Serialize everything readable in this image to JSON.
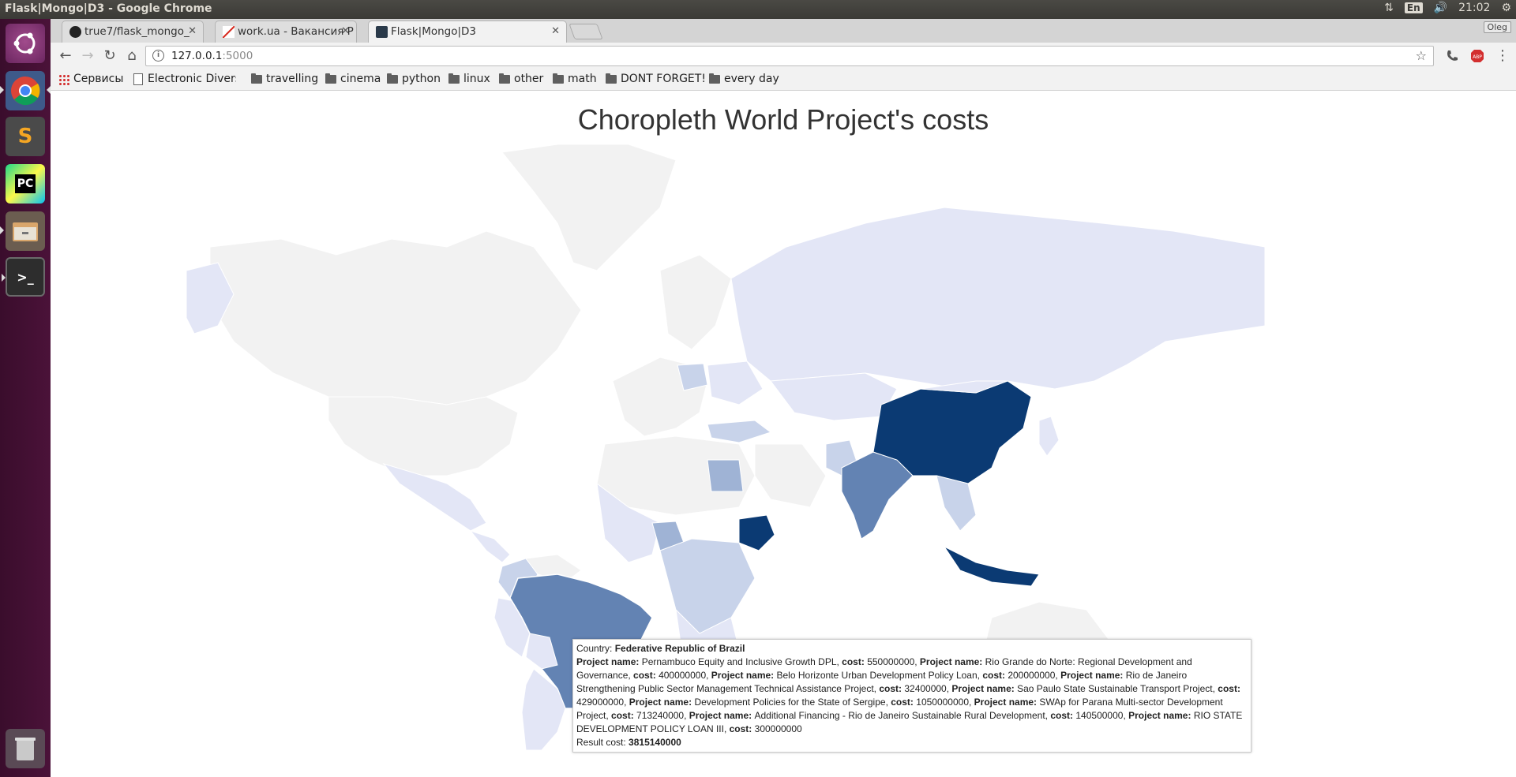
{
  "system": {
    "window_title": "Flask|Mongo|D3 - Google Chrome",
    "lang": "En",
    "time": "21:02"
  },
  "launcher": {
    "items": [
      {
        "name": "ubuntu-dash-icon"
      },
      {
        "name": "chrome-icon"
      },
      {
        "name": "sublime-text-icon",
        "glyph": "S"
      },
      {
        "name": "pycharm-icon",
        "glyph": "PC"
      },
      {
        "name": "files-icon"
      },
      {
        "name": "terminal-icon",
        "glyph": ">_"
      },
      {
        "name": "trash-icon"
      }
    ]
  },
  "browser": {
    "tabs": [
      {
        "label": "true7/flask_mongo_",
        "icon": "github-icon",
        "active": false
      },
      {
        "label": "work.ua - Вакансия Р",
        "icon": "gmail-icon",
        "active": false
      },
      {
        "label": "Flask|Mongo|D3",
        "icon": "terminal-favicon-icon",
        "active": true
      }
    ],
    "profile": "Oleg",
    "url_host": "127.0.0.1",
    "url_port": ":5000",
    "bookmarks": [
      {
        "label": "Сервисы",
        "type": "apps"
      },
      {
        "label": "Electronic Diversi",
        "type": "page"
      },
      {
        "label": "travelling",
        "type": "folder"
      },
      {
        "label": "cinema",
        "type": "folder"
      },
      {
        "label": "python",
        "type": "folder"
      },
      {
        "label": "linux",
        "type": "folder"
      },
      {
        "label": "other",
        "type": "folder"
      },
      {
        "label": "math",
        "type": "folder"
      },
      {
        "label": "DONT FORGET!",
        "type": "folder"
      },
      {
        "label": "every day",
        "type": "folder"
      }
    ]
  },
  "page": {
    "title": "Choropleth World Project's costs"
  },
  "map": {
    "colors": {
      "none": "#f2f2f2",
      "level1": "#e3e6f6",
      "level2": "#c8d3ea",
      "level3": "#9fb3d5",
      "level4": "#6383b3",
      "level5": "#0b3a73",
      "border": "#ffffff"
    }
  },
  "tooltip": {
    "country_label": "Country:",
    "country": "Federative Republic of Brazil",
    "project_label": "Project name:",
    "cost_label": "cost:",
    "projects": [
      {
        "name": "Pernambuco Equity and Inclusive Growth DPL",
        "cost": "550000000"
      },
      {
        "name": "Rio Grande do Norte: Regional Development and Governance",
        "cost": "400000000"
      },
      {
        "name": "Belo Horizonte Urban Development Policy Loan",
        "cost": "200000000"
      },
      {
        "name": "Rio de Janeiro Strengthening Public Sector Management Technical Assistance Project",
        "cost": "32400000"
      },
      {
        "name": "Sao Paulo State Sustainable Transport Project",
        "cost": "429000000"
      },
      {
        "name": "Development Policies for the State of Sergipe",
        "cost": "1050000000"
      },
      {
        "name": "SWAp for Parana Multi-sector Development Project",
        "cost": "713240000"
      },
      {
        "name": "Additional Financing - Rio de Janeiro Sustainable Rural Development",
        "cost": "140500000"
      },
      {
        "name": "RIO STATE DEVELOPMENT POLICY LOAN III",
        "cost": "300000000"
      }
    ],
    "result_label": "Result cost:",
    "result": "3815140000"
  }
}
